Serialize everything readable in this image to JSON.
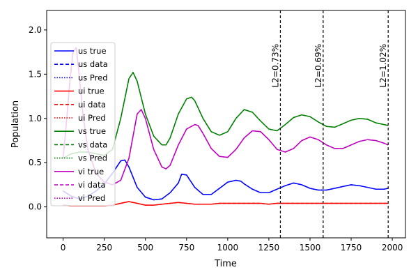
{
  "chart_data": {
    "type": "line",
    "xlabel": "Time",
    "ylabel": "Population",
    "xlim": [
      -100,
      2080
    ],
    "ylim": [
      -0.35,
      2.22
    ],
    "xticks": [
      0,
      250,
      500,
      750,
      1000,
      1250,
      1500,
      1750,
      2000
    ],
    "yticks": [
      0.0,
      0.5,
      1.0,
      1.5,
      2.0
    ],
    "xtick_labels": [
      "0",
      "250",
      "500",
      "750",
      "1000",
      "1250",
      "1500",
      "1750",
      "2000"
    ],
    "ytick_labels": [
      "0.0",
      "0.5",
      "1.0",
      "1.5",
      "2.0"
    ],
    "grid": false,
    "legend_position": "upper-left",
    "legend": [
      {
        "label": "us true",
        "color": "#0000ff",
        "style": "solid"
      },
      {
        "label": "us data",
        "color": "#0000ff",
        "style": "dashed"
      },
      {
        "label": "us Pred",
        "color": "#0000ff",
        "style": "dotted"
      },
      {
        "label": "ui true",
        "color": "#ff0000",
        "style": "solid"
      },
      {
        "label": "ui data",
        "color": "#ff0000",
        "style": "dashed"
      },
      {
        "label": "ui Pred",
        "color": "#ff0000",
        "style": "dotted"
      },
      {
        "label": "vs true",
        "color": "#008000",
        "style": "solid"
      },
      {
        "label": "vs data",
        "color": "#008000",
        "style": "dashed"
      },
      {
        "label": "vs Pred",
        "color": "#008000",
        "style": "dotted"
      },
      {
        "label": "vi true",
        "color": "#bf00bf",
        "style": "solid"
      },
      {
        "label": "vi data",
        "color": "#bf00bf",
        "style": "dashed"
      },
      {
        "label": "vi Pred",
        "color": "#bf00bf",
        "style": "dotted"
      }
    ],
    "vlines": [
      {
        "x": 1320,
        "label": "L2=0.73%"
      },
      {
        "x": 1580,
        "label": "L2=0.69%"
      },
      {
        "x": 1975,
        "label": "L2=1.02%"
      }
    ],
    "series": [
      {
        "name": "us",
        "color": "#0000ff",
        "x": [
          0,
          50,
          100,
          150,
          200,
          250,
          300,
          350,
          375,
          400,
          450,
          500,
          550,
          600,
          650,
          700,
          720,
          750,
          800,
          850,
          900,
          950,
          1000,
          1050,
          1080,
          1100,
          1150,
          1200,
          1250,
          1300,
          1350,
          1400,
          1450,
          1500,
          1550,
          1600,
          1650,
          1700,
          1750,
          1800,
          1850,
          1900,
          1950,
          1975
        ],
        "y": [
          0.18,
          0.12,
          0.09,
          0.12,
          0.18,
          0.26,
          0.38,
          0.52,
          0.53,
          0.45,
          0.22,
          0.11,
          0.08,
          0.09,
          0.16,
          0.27,
          0.37,
          0.36,
          0.22,
          0.14,
          0.14,
          0.21,
          0.28,
          0.3,
          0.29,
          0.26,
          0.2,
          0.16,
          0.16,
          0.2,
          0.24,
          0.27,
          0.25,
          0.21,
          0.19,
          0.19,
          0.21,
          0.23,
          0.25,
          0.24,
          0.22,
          0.2,
          0.2,
          0.21
        ]
      },
      {
        "name": "ui",
        "color": "#ff0000",
        "x": [
          0,
          50,
          100,
          150,
          200,
          250,
          300,
          350,
          400,
          450,
          500,
          550,
          600,
          650,
          700,
          750,
          800,
          850,
          900,
          950,
          1000,
          1050,
          1100,
          1150,
          1200,
          1250,
          1300,
          1400,
          1500,
          1600,
          1700,
          1800,
          1900,
          1975
        ],
        "y": [
          0.02,
          0.01,
          0.01,
          0.01,
          0.01,
          0.01,
          0.02,
          0.04,
          0.06,
          0.04,
          0.02,
          0.02,
          0.03,
          0.04,
          0.05,
          0.04,
          0.03,
          0.03,
          0.03,
          0.04,
          0.04,
          0.04,
          0.04,
          0.04,
          0.04,
          0.03,
          0.04,
          0.04,
          0.04,
          0.04,
          0.04,
          0.04,
          0.04,
          0.04
        ]
      },
      {
        "name": "vs",
        "color": "#008000",
        "x": [
          0,
          50,
          100,
          150,
          200,
          250,
          300,
          350,
          400,
          425,
          450,
          500,
          550,
          600,
          625,
          650,
          700,
          750,
          780,
          800,
          850,
          900,
          950,
          1000,
          1050,
          1100,
          1150,
          1200,
          1250,
          1300,
          1350,
          1400,
          1450,
          1500,
          1550,
          1600,
          1650,
          1700,
          1750,
          1800,
          1850,
          1900,
          1950,
          1975
        ],
        "y": [
          0.55,
          0.6,
          0.62,
          0.62,
          0.6,
          0.58,
          0.65,
          1.0,
          1.45,
          1.52,
          1.42,
          1.05,
          0.8,
          0.7,
          0.7,
          0.78,
          1.05,
          1.22,
          1.24,
          1.2,
          1.0,
          0.85,
          0.81,
          0.85,
          1.0,
          1.1,
          1.07,
          0.97,
          0.88,
          0.86,
          0.93,
          1.01,
          1.04,
          1.02,
          0.96,
          0.91,
          0.9,
          0.94,
          0.98,
          1.0,
          0.99,
          0.95,
          0.93,
          0.92
        ]
      },
      {
        "name": "vi",
        "color": "#bf00bf",
        "x": [
          0,
          20,
          40,
          60,
          80,
          100,
          120,
          150,
          200,
          250,
          300,
          350,
          400,
          450,
          475,
          500,
          550,
          600,
          625,
          650,
          700,
          750,
          800,
          820,
          850,
          900,
          950,
          1000,
          1050,
          1100,
          1150,
          1200,
          1250,
          1300,
          1350,
          1400,
          1450,
          1500,
          1550,
          1600,
          1650,
          1700,
          1750,
          1800,
          1850,
          1900,
          1950,
          1975
        ],
        "y": [
          0.55,
          0.95,
          1.4,
          1.75,
          1.8,
          1.45,
          1.05,
          0.65,
          0.38,
          0.28,
          0.25,
          0.3,
          0.55,
          1.05,
          1.1,
          1.0,
          0.65,
          0.45,
          0.43,
          0.47,
          0.7,
          0.88,
          0.93,
          0.92,
          0.83,
          0.66,
          0.57,
          0.56,
          0.65,
          0.78,
          0.86,
          0.85,
          0.76,
          0.65,
          0.62,
          0.66,
          0.75,
          0.79,
          0.76,
          0.7,
          0.66,
          0.66,
          0.7,
          0.74,
          0.76,
          0.75,
          0.72,
          0.7
        ]
      }
    ]
  }
}
